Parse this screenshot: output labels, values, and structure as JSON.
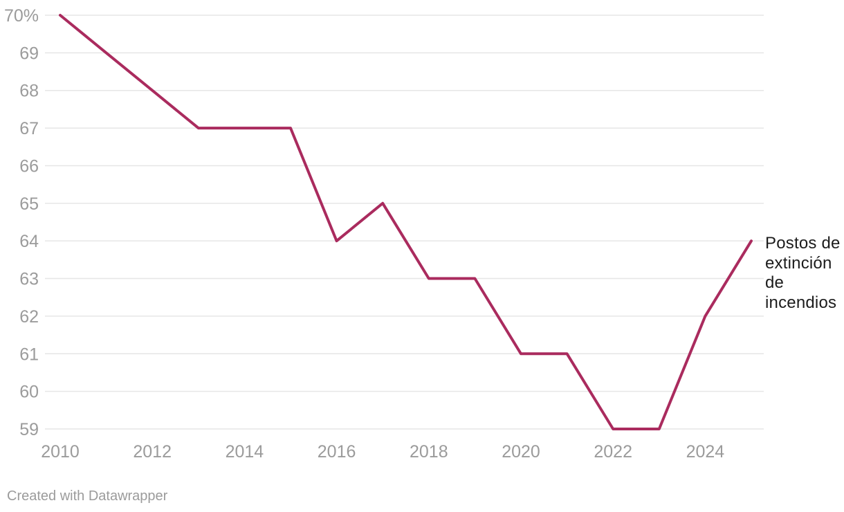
{
  "chart_data": {
    "type": "line",
    "title": "",
    "xlabel": "",
    "ylabel": "",
    "x": [
      2010,
      2011,
      2012,
      2013,
      2014,
      2015,
      2016,
      2017,
      2018,
      2019,
      2020,
      2021,
      2022,
      2023,
      2024,
      2025
    ],
    "series": [
      {
        "name": "Postos de extinción de incendios",
        "values": [
          70,
          69,
          68,
          67,
          67,
          67,
          64,
          65,
          63,
          63,
          61,
          61,
          59,
          59,
          62,
          64
        ]
      }
    ],
    "ylim": [
      59,
      70
    ],
    "xlim": [
      2010,
      2025
    ],
    "grid": true,
    "legend_position": "right-of-line-end",
    "y_ticks": [
      {
        "value": 70,
        "label": "70%"
      },
      {
        "value": 69,
        "label": "69"
      },
      {
        "value": 68,
        "label": "68"
      },
      {
        "value": 67,
        "label": "67"
      },
      {
        "value": 66,
        "label": "66"
      },
      {
        "value": 65,
        "label": "65"
      },
      {
        "value": 64,
        "label": "64"
      },
      {
        "value": 63,
        "label": "63"
      },
      {
        "value": 62,
        "label": "62"
      },
      {
        "value": 61,
        "label": "61"
      },
      {
        "value": 60,
        "label": "60"
      },
      {
        "value": 59,
        "label": "59"
      }
    ],
    "x_ticks": [
      {
        "value": 2010,
        "label": "2010"
      },
      {
        "value": 2012,
        "label": "2012"
      },
      {
        "value": 2014,
        "label": "2014"
      },
      {
        "value": 2016,
        "label": "2016"
      },
      {
        "value": 2018,
        "label": "2018"
      },
      {
        "value": 2020,
        "label": "2020"
      },
      {
        "value": 2022,
        "label": "2022"
      },
      {
        "value": 2024,
        "label": "2024"
      }
    ],
    "colors": {
      "line": "#aa2b5e",
      "grid": "#e6e6e6",
      "axis_text": "#9b9b9b",
      "series_label_text": "#1c1c1c"
    }
  },
  "series_end_label": {
    "text": "Postos de extinción de incendios"
  },
  "footer": {
    "credit": "Created with Datawrapper"
  }
}
